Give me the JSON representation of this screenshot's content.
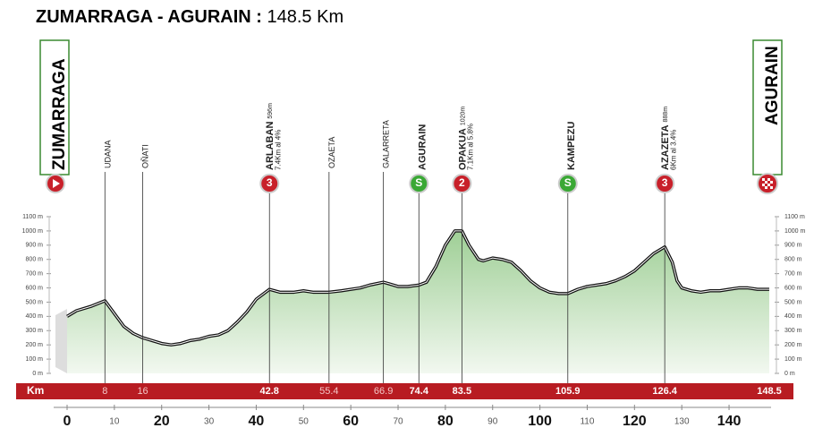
{
  "chart_data": {
    "type": "profile",
    "title": "ZUMARRAGA - AGURAIN :",
    "distance": "148.5 Km",
    "start": "ZUMARRAGA",
    "finish": "AGURAIN",
    "x": [
      0,
      2,
      5,
      8,
      10,
      12,
      14,
      16,
      18,
      20,
      22,
      24,
      26,
      28,
      30,
      32,
      34,
      36,
      38,
      40,
      42.8,
      45,
      48,
      50,
      52,
      55.4,
      58,
      62,
      64,
      66.9,
      68,
      70,
      72,
      74.4,
      76,
      78,
      80,
      82,
      83.5,
      85,
      87,
      88,
      90,
      92,
      94,
      96,
      98,
      100,
      102,
      104,
      105.9,
      108,
      110,
      112,
      114,
      116,
      118,
      120,
      122,
      124,
      126.4,
      128,
      129,
      130,
      132,
      134,
      136,
      138,
      140,
      142,
      144,
      146,
      148.5
    ],
    "values": [
      400,
      440,
      470,
      510,
      420,
      330,
      280,
      250,
      230,
      210,
      200,
      210,
      230,
      240,
      260,
      270,
      300,
      360,
      430,
      520,
      590,
      570,
      570,
      580,
      570,
      570,
      580,
      600,
      620,
      640,
      630,
      610,
      610,
      620,
      640,
      750,
      900,
      1000,
      1000,
      900,
      800,
      790,
      810,
      800,
      780,
      720,
      650,
      600,
      570,
      560,
      560,
      590,
      610,
      620,
      630,
      650,
      680,
      720,
      780,
      840,
      888,
      780,
      650,
      600,
      580,
      570,
      580,
      580,
      590,
      600,
      600,
      590,
      590
    ],
    "color": "#9fcf96",
    "xlim": [
      0,
      148.5
    ],
    "xticks": [
      0,
      10,
      20,
      30,
      40,
      50,
      60,
      70,
      80,
      90,
      100,
      110,
      120,
      130,
      140
    ],
    "ylim": [
      0,
      1100
    ],
    "yticks": [
      {
        "value": 0,
        "label": "0 m"
      },
      {
        "value": 100,
        "label": "100 m"
      },
      {
        "value": 200,
        "label": "200 m"
      },
      {
        "value": 300,
        "label": "300 m"
      },
      {
        "value": 400,
        "label": "400 m"
      },
      {
        "value": 500,
        "label": "500 m"
      },
      {
        "value": 600,
        "label": "600 m"
      },
      {
        "value": 700,
        "label": "700 m"
      },
      {
        "value": 800,
        "label": "800 m"
      },
      {
        "value": 900,
        "label": "900 m"
      },
      {
        "value": 1000,
        "label": "1000 m"
      },
      {
        "value": 1100,
        "label": "1100 m"
      }
    ],
    "km_label": "Km",
    "markers": [
      {
        "km": 8,
        "name": "UDANA",
        "major": false
      },
      {
        "km": 16,
        "name": "OÑATI",
        "major": false
      },
      {
        "km": 42.8,
        "name": "ARLABAN",
        "altitude": "596m",
        "note": "7.4Km al 4%",
        "badge": "3",
        "badge_color": "#c8202a",
        "major": true
      },
      {
        "km": 55.4,
        "name": "OZAETA",
        "major": false
      },
      {
        "km": 66.9,
        "name": "GALARRETA",
        "major": false
      },
      {
        "km": 74.4,
        "name": "AGURAIN",
        "badge": "S",
        "badge_color": "#3aa835",
        "major": true
      },
      {
        "km": 83.5,
        "name": "OPAKUA",
        "altitude": "1020m",
        "note": "7.1Km al 5.8%",
        "badge": "2",
        "badge_color": "#c8202a",
        "major": true
      },
      {
        "km": 105.9,
        "name": "KAMPEZU",
        "badge": "S",
        "badge_color": "#3aa835",
        "major": true
      },
      {
        "km": 126.4,
        "name": "AZAZETA",
        "altitude": "888m",
        "note": "6Km al 3.4%",
        "badge": "3",
        "badge_color": "#c8202a",
        "major": true
      },
      {
        "km": 148.5,
        "major": true
      }
    ]
  }
}
